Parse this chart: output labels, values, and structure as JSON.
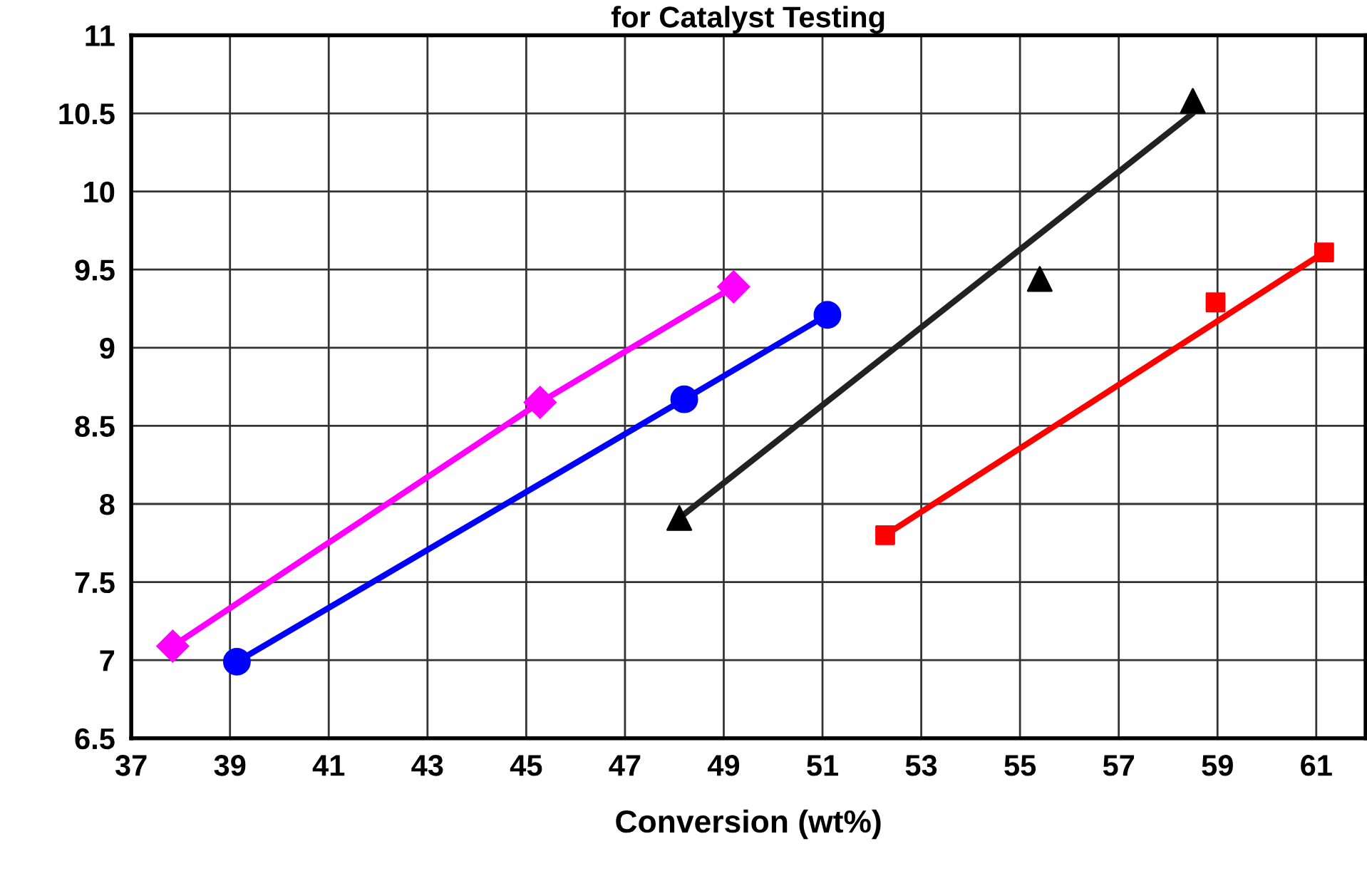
{
  "chart_data": {
    "type": "line",
    "title": "for Catalyst Testing",
    "xlabel": "Conversion (wt%)",
    "xlim": [
      37,
      62
    ],
    "xticks": [
      37,
      39,
      41,
      43,
      45,
      47,
      49,
      51,
      53,
      55,
      57,
      59,
      61
    ],
    "ylim": [
      6.5,
      11
    ],
    "yticks": [
      6.5,
      7,
      7.5,
      8,
      8.5,
      9,
      9.5,
      10,
      10.5,
      11
    ],
    "grid": true,
    "legend": false,
    "series": [
      {
        "color": "#ff00ff",
        "marker": "diamond",
        "x": [
          37.84,
          45.28,
          49.2
        ],
        "values": [
          7.09,
          8.65,
          9.39
        ]
      },
      {
        "color": "#0000ff",
        "marker": "circle",
        "x": [
          39.14,
          48.2,
          51.1
        ],
        "values": [
          6.99,
          8.67,
          9.21
        ]
      },
      {
        "type": "scatter",
        "color": "#000000",
        "marker": "triangle",
        "x": [
          48.1,
          55.4,
          58.5
        ],
        "values": [
          7.91,
          9.44,
          10.58
        ]
      },
      {
        "color": "#222222",
        "marker": "none",
        "x": [
          48.1,
          58.5
        ],
        "values": [
          7.91,
          10.5
        ]
      },
      {
        "type": "scatter",
        "color": "#ff0000",
        "marker": "square",
        "x": [
          52.27,
          58.96,
          61.16
        ],
        "values": [
          7.8,
          9.29,
          9.61
        ]
      },
      {
        "color": "#ff0000",
        "marker": "none",
        "x": [
          52.27,
          61.16
        ],
        "values": [
          7.8,
          9.61
        ]
      }
    ]
  }
}
